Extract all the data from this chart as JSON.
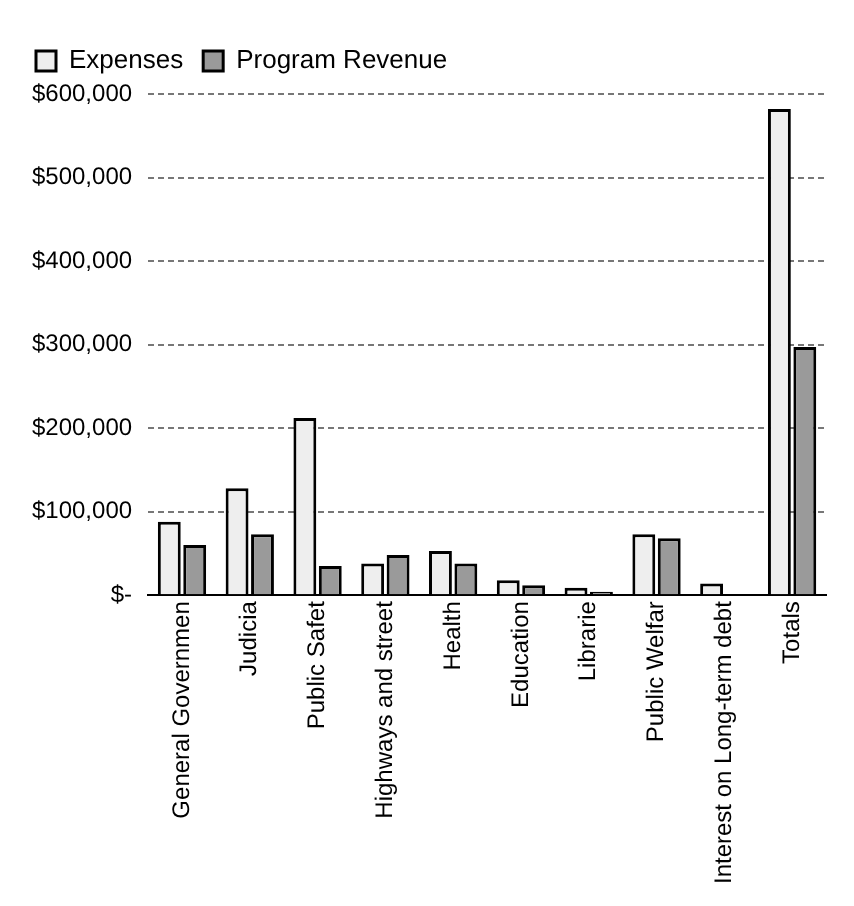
{
  "chart_data": {
    "type": "bar",
    "categories": [
      "General Governmen",
      "Judicia",
      "Public Safet",
      "Highways and street",
      "Health",
      "Education",
      "Librarie",
      "Public Welfar",
      "Interest on Long-term debt",
      "Totals"
    ],
    "series": [
      {
        "name": "Expenses",
        "color": "#eeeeee",
        "values": [
          88000,
          128000,
          212000,
          38000,
          53000,
          18000,
          9000,
          73000,
          14000,
          582000
        ]
      },
      {
        "name": "Program Revenue",
        "color": "#9a9a9a",
        "values": [
          60000,
          73000,
          35000,
          48000,
          38000,
          12000,
          4000,
          68000,
          null,
          297000
        ]
      }
    ],
    "ylim": [
      0,
      600000
    ],
    "yticks": [
      {
        "value": 0,
        "label": "$-"
      },
      {
        "value": 100000,
        "label": "$100,000"
      },
      {
        "value": 200000,
        "label": "$200,000"
      },
      {
        "value": 300000,
        "label": "$300,000"
      },
      {
        "value": 400000,
        "label": "$400,000"
      },
      {
        "value": 500000,
        "label": "$500,000"
      },
      {
        "value": 600000,
        "label": "$600,000"
      }
    ],
    "grid": "y",
    "legend": "top left"
  }
}
